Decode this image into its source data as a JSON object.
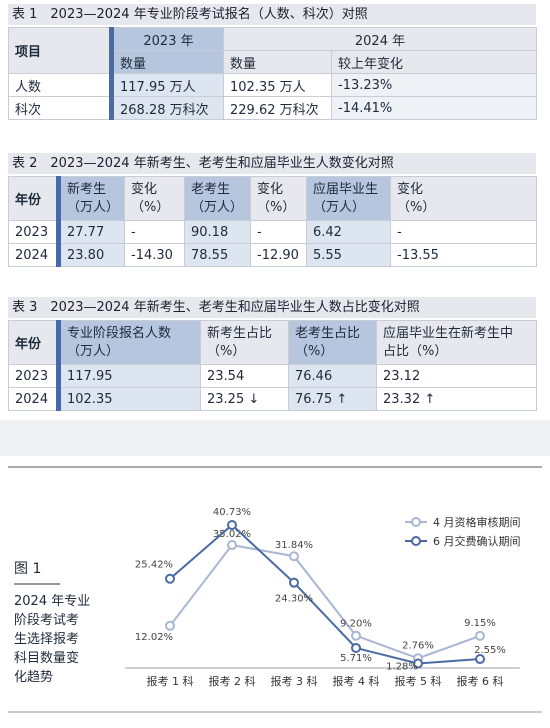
{
  "table1": {
    "caption": "表 1　2023—2024 年专业阶段考试报名（人数、科次）对照",
    "h_item": "项目",
    "h_2023": "2023 年",
    "h_2024": "2024 年",
    "h_qty_a": "数量",
    "h_qty_b": "数量",
    "h_change": "较上年变化",
    "rows": [
      {
        "label": "人数",
        "v2023": "117.95 万人",
        "v2024": "102.35 万人",
        "chg": "-13.23%"
      },
      {
        "label": "科次",
        "v2023": "268.28 万科次",
        "v2024": "229.62 万科次",
        "chg": "-14.41%"
      }
    ]
  },
  "table2": {
    "caption": "表 2　2023—2024 年新考生、老考生和应届毕业生人数变化对照",
    "h_year": "年份",
    "h_new": "新考生",
    "h_new_u": "（万人）",
    "h_c1": "变化",
    "h_c1_u": "（%）",
    "h_old": "老考生",
    "h_old_u": "（万人）",
    "h_c2": "变化",
    "h_c2_u": "（%）",
    "h_grad": "应届毕业生",
    "h_grad_u": "（万人）",
    "h_c3": "变化",
    "h_c3_u": "（%）",
    "rows": [
      {
        "year": "2023",
        "new": "27.77",
        "c1": "-",
        "old": "90.18",
        "c2": "-",
        "grad": "6.42",
        "c3": "-"
      },
      {
        "year": "2024",
        "new": "23.80",
        "c1": "-14.30",
        "old": "78.55",
        "c2": "-12.90",
        "grad": "5.55",
        "c3": "-13.55"
      }
    ]
  },
  "table3": {
    "caption": "表 3　2023—2024 年新考生、老考生和应届毕业生人数占比变化对照",
    "h_year": "年份",
    "h_total": "专业阶段报名人数",
    "h_total_u": "（万人）",
    "h_new": "新考生占比",
    "h_new_u": "（%）",
    "h_old": "老考生占比",
    "h_old_u": "（%）",
    "h_grad": "应届毕业生在新考生中",
    "h_grad_u": "占比（%）",
    "rows": [
      {
        "year": "2023",
        "total": "117.95",
        "new": "23.54",
        "old": "76.46",
        "grad": "23.12"
      },
      {
        "year": "2024",
        "total": "102.35",
        "new": "23.25 ↓",
        "old": "76.75 ↑",
        "grad": "23.32 ↑"
      }
    ]
  },
  "figure": {
    "label": "图 1",
    "caption_lines": [
      "2024 年专业",
      "阶段考试考",
      "生选择报考",
      "科目数量变",
      "化趋势"
    ]
  },
  "chart_data": {
    "type": "line",
    "categories": [
      "报考 1 科",
      "报考 2 科",
      "报考 3 科",
      "报考 4 科",
      "报考 5 科",
      "报考 6 科"
    ],
    "series": [
      {
        "name": "4 月资格审核期间",
        "color": "#a9b6d3",
        "values": [
          12.02,
          35.02,
          31.84,
          9.2,
          2.76,
          9.15
        ],
        "labels": [
          "12.02%",
          "35.02%",
          "31.84%",
          "9.20%",
          "2.76%",
          "9.15%"
        ]
      },
      {
        "name": "6 月交费确认期间",
        "color": "#4a6aa6",
        "values": [
          25.42,
          40.73,
          24.3,
          5.71,
          1.28,
          2.55
        ],
        "labels": [
          "25.42%",
          "40.73%",
          "24.30%",
          "5.71%",
          "1.28%",
          "2.55%"
        ]
      }
    ],
    "ylim": [
      0,
      45
    ],
    "grid": false,
    "legend": "top-right"
  }
}
